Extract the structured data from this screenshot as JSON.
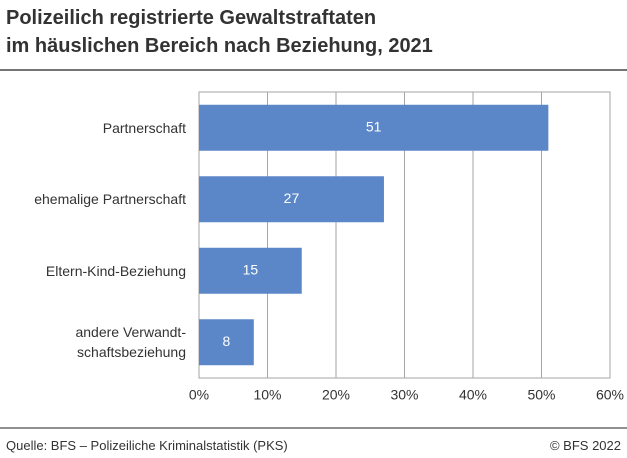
{
  "chart_data": {
    "type": "bar",
    "orientation": "horizontal",
    "title": "Polizeilich registrierte Gewaltstraftaten\nim häuslichen Bereich nach Beziehung, 2021",
    "categories": [
      "Partnerschaft",
      "ehemalige Partnerschaft",
      "Eltern-Kind-Beziehung",
      "andere Verwandt-\nschaftsbeziehung"
    ],
    "values": [
      51,
      27,
      15,
      8
    ],
    "color": "#5b87c9",
    "xlim": [
      0,
      60
    ],
    "xticks": [
      {
        "value": 0,
        "label": "0%"
      },
      {
        "value": 10,
        "label": "10%"
      },
      {
        "value": 20,
        "label": "20%"
      },
      {
        "value": 30,
        "label": "30%"
      },
      {
        "value": 40,
        "label": "40%"
      },
      {
        "value": 50,
        "label": "50%"
      },
      {
        "value": 60,
        "label": "60%"
      }
    ],
    "grid": true,
    "source": "Quelle: BFS – Polizeiliche Kriminalstatistik (PKS)",
    "copyright": "© BFS 2022"
  }
}
